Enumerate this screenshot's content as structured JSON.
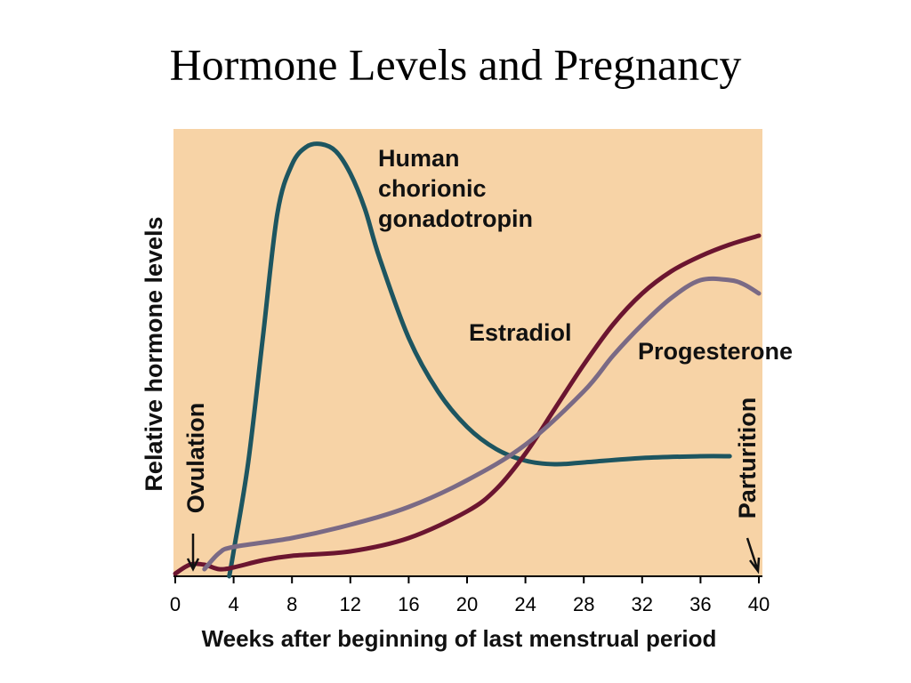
{
  "chart_data": {
    "type": "line",
    "title": "Hormone Levels and Pregnancy",
    "x_label": "Weeks after beginning of last menstrual period",
    "y_label": "Relative hormone levels",
    "xlim": [
      0,
      40
    ],
    "xticks": [
      0,
      4,
      8,
      12,
      16,
      20,
      24,
      28,
      32,
      36,
      40
    ],
    "ylim": [
      0,
      100
    ],
    "background": "#f7d3a6",
    "series": [
      {
        "name": "Human chorionic gonadotropin",
        "color": "#1d5560",
        "x": [
          3.7,
          4,
          5,
          6,
          7,
          8,
          9,
          10,
          11,
          12,
          13,
          14,
          16,
          18,
          20,
          22,
          24,
          26,
          28,
          32,
          36,
          38
        ],
        "values": [
          0,
          5.6,
          25.6,
          53.6,
          81.6,
          92.6,
          96.6,
          97.2,
          95.6,
          90.6,
          82.6,
          71.6,
          53.6,
          41.6,
          33.6,
          28.6,
          26,
          25.2,
          25.6,
          26.6,
          27,
          27
        ]
      },
      {
        "name": "Estradiol",
        "color": "#6b1530",
        "x": [
          0,
          1,
          2,
          3,
          4,
          6,
          8,
          12,
          16,
          20,
          22,
          24,
          26,
          28,
          30,
          32,
          34,
          36,
          38,
          40
        ],
        "values": [
          0.6,
          2.6,
          2.6,
          1.6,
          2,
          3.6,
          4.6,
          5.6,
          8.6,
          14.6,
          19.6,
          27.6,
          37.6,
          47.6,
          56.6,
          63.6,
          68.6,
          72,
          74.6,
          76.6
        ]
      },
      {
        "name": "Progesterone",
        "color": "#7a6a85",
        "x": [
          2,
          3,
          4,
          8,
          12,
          16,
          20,
          24,
          28,
          30,
          32,
          34,
          36,
          38,
          39,
          40
        ],
        "values": [
          1.6,
          5.2,
          6.6,
          8.6,
          11.6,
          15.6,
          21.6,
          29.6,
          41.6,
          49.6,
          56.6,
          62.6,
          66.6,
          66.6,
          65.6,
          63.6
        ]
      }
    ],
    "annotations": [
      "Ovulation",
      "Parturition"
    ]
  }
}
